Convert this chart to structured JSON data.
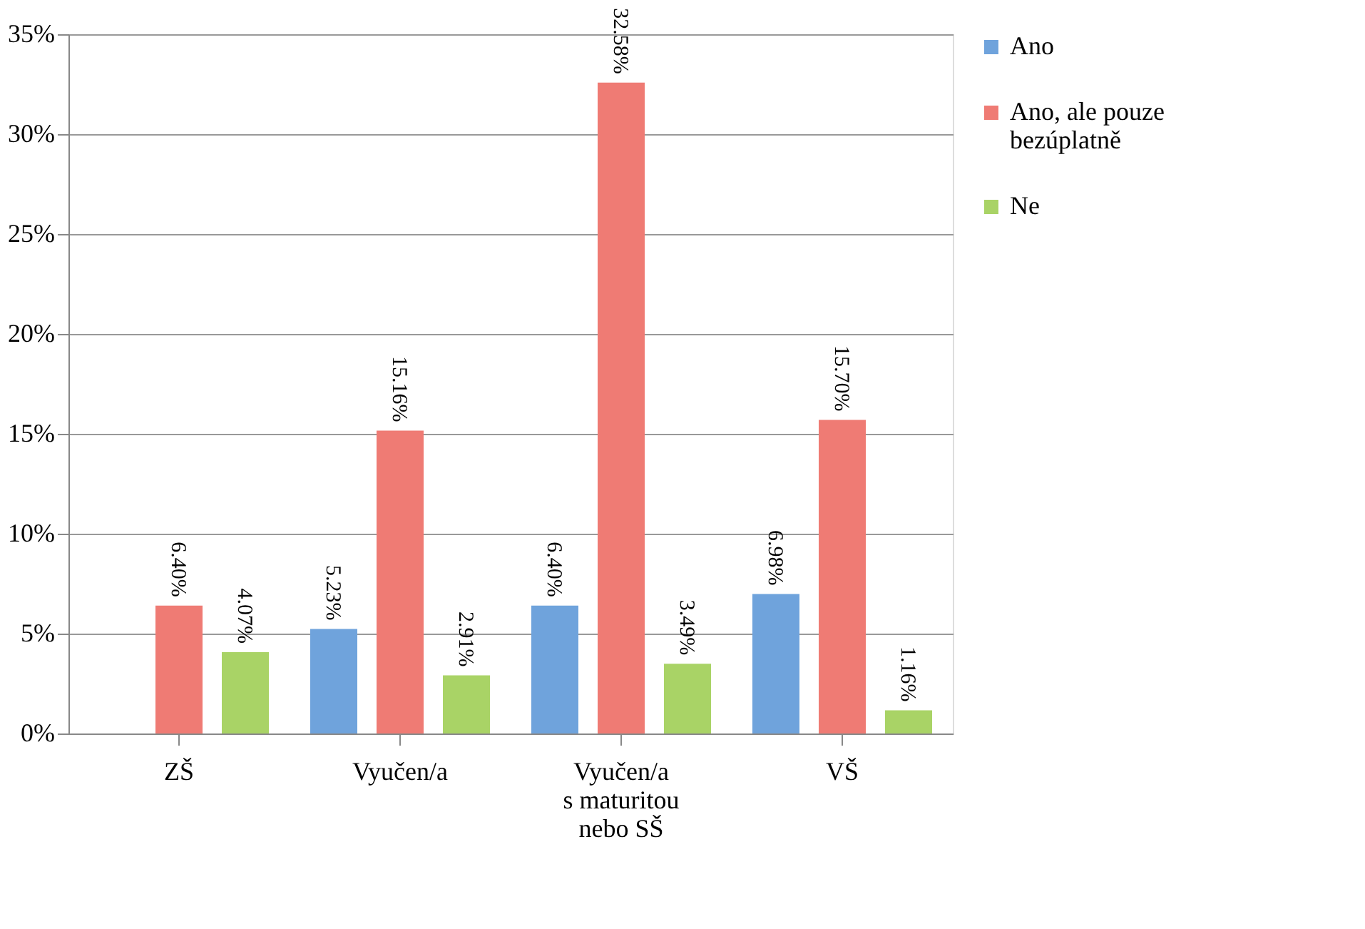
{
  "chart_data": {
    "type": "bar",
    "categories": [
      "ZŠ",
      "Vyučen/a",
      "Vyučen/a\ns maturitou\nnebo SŠ",
      "VŠ"
    ],
    "series": [
      {
        "name": "Ano",
        "color": "#6fa3dc",
        "values": [
          null,
          5.23,
          6.4,
          6.98
        ],
        "value_labels": [
          null,
          "5.23%",
          "6.40%",
          "6.98%"
        ]
      },
      {
        "name": "Ano, ale  pouze\nbezúplatně",
        "color": "#ef7b74",
        "values": [
          6.4,
          15.16,
          32.58,
          15.7
        ],
        "value_labels": [
          "6.40%",
          "15.16%",
          "32.58%",
          "15.70%"
        ]
      },
      {
        "name": "Ne",
        "color": "#a9d366",
        "values": [
          4.07,
          2.91,
          3.49,
          1.16
        ],
        "value_labels": [
          "4.07%",
          "2.91%",
          "3.49%",
          "1.16%"
        ]
      }
    ],
    "ylim": [
      0,
      35
    ],
    "yticks": [
      {
        "value": 0,
        "label": "0%"
      },
      {
        "value": 5,
        "label": "5%"
      },
      {
        "value": 10,
        "label": "10%"
      },
      {
        "value": 15,
        "label": "15%"
      },
      {
        "value": 20,
        "label": "20%"
      },
      {
        "value": 25,
        "label": "25%"
      },
      {
        "value": 30,
        "label": "30%"
      },
      {
        "value": 35,
        "label": "35%"
      }
    ],
    "grid": "y",
    "legend": "right"
  }
}
